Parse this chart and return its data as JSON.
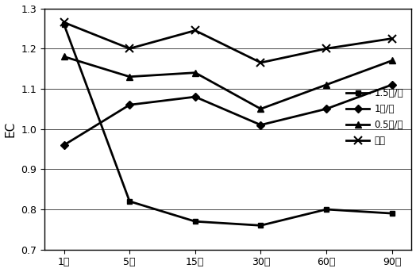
{
  "x_labels": [
    "1天",
    "5天",
    "15天",
    "30天",
    "60天",
    "90天"
  ],
  "series": [
    {
      "label": "1.5吨/亩",
      "values": [
        1.26,
        0.82,
        0.77,
        0.76,
        0.8,
        0.79
      ],
      "marker": "s",
      "linewidth": 2.0,
      "markersize": 5
    },
    {
      "label": "1吨/亩",
      "values": [
        0.96,
        1.06,
        1.08,
        1.01,
        1.05,
        1.11
      ],
      "marker": "D",
      "linewidth": 2.0,
      "markersize": 5
    },
    {
      "label": "0.5吨/亩",
      "values": [
        1.18,
        1.13,
        1.14,
        1.05,
        1.11,
        1.17
      ],
      "marker": "^",
      "linewidth": 2.0,
      "markersize": 6
    },
    {
      "label": "空白",
      "values": [
        1.265,
        1.2,
        1.245,
        1.165,
        1.2,
        1.225
      ],
      "marker": "x",
      "linewidth": 2.0,
      "markersize": 7
    }
  ],
  "ylabel": "EC",
  "ylim": [
    0.7,
    1.3
  ],
  "yticks": [
    0.7,
    0.8,
    0.9,
    1.0,
    1.1,
    1.2,
    1.3
  ],
  "background_color": "#ffffff"
}
